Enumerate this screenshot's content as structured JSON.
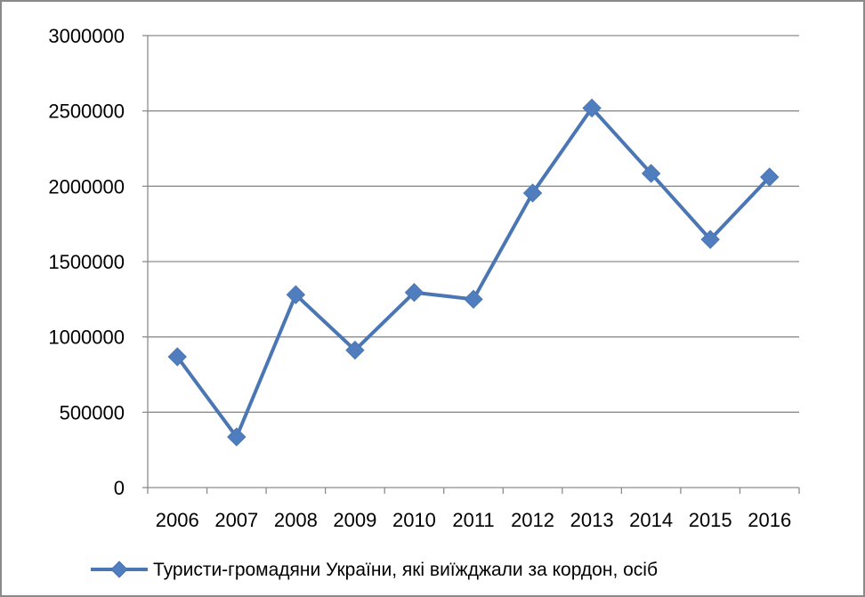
{
  "colors": {
    "series": "#4a76b4",
    "marker": "#4f7dbd",
    "grid": "#8c8c8c",
    "axis": "#8c8c8c",
    "frame": "#8a8a8a"
  },
  "chart_data": {
    "type": "line",
    "title": "",
    "xlabel": "",
    "ylabel": "",
    "categories": [
      "2006",
      "2007",
      "2008",
      "2009",
      "2010",
      "2011",
      "2012",
      "2013",
      "2014",
      "2015",
      "2016"
    ],
    "series": [
      {
        "name": "Туристи-громадяни України, які виїжджали за кордон, осіб",
        "marker": "diamond",
        "values": [
          868000,
          336000,
          1280000,
          912000,
          1295000,
          1250000,
          1955000,
          2519000,
          2085000,
          1647000,
          2061000
        ]
      }
    ],
    "ylim": [
      0,
      3000000
    ],
    "yticks": [
      "0",
      "500000",
      "1000000",
      "1500000",
      "2000000",
      "2500000",
      "3000000"
    ],
    "grid": true,
    "legend_position": "bottom"
  }
}
